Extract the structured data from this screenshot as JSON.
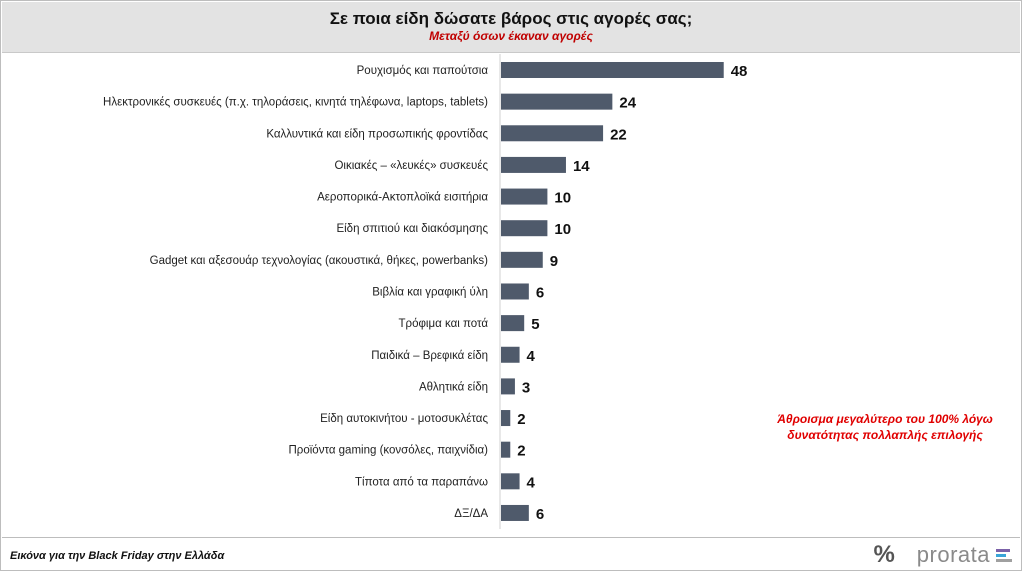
{
  "header": {
    "title": "Σε ποια είδη δώσατε βάρος στις αγορές σας;",
    "subtitle": "Μεταξύ όσων έκαναν αγορές"
  },
  "chart_data": {
    "type": "bar",
    "orientation": "horizontal",
    "title": "Σε ποια είδη δώσατε βάρος στις αγορές σας;",
    "subtitle": "Μεταξύ όσων έκαναν αγορές",
    "categories": [
      "Ρουχισμός και παπούτσια",
      "Ηλεκτρονικές συσκευές (π.χ. τηλοράσεις, κινητά τηλέφωνα, laptops, tablets)",
      "Καλλυντικά και είδη προσωπικής φροντίδας",
      "Οικιακές – «λευκές» συσκευές",
      "Αεροπορικά-Ακτοπλοϊκά εισιτήρια",
      "Είδη σπιτιού και διακόσμησης",
      "Gadget και αξεσουάρ τεχνολογίας (ακουστικά, θήκες, powerbanks)",
      "Βιβλία και γραφική ύλη",
      "Τρόφιμα και ποτά",
      "Παιδικά – Βρεφικά είδη",
      "Αθλητικά είδη",
      "Είδη αυτοκινήτου - μοτοσυκλέτας",
      "Προϊόντα gaming (κονσόλες, παιχνίδια)",
      "Τίποτα από τα παραπάνω",
      "ΔΞ/ΔΑ"
    ],
    "values": [
      48,
      24,
      22,
      14,
      10,
      10,
      9,
      6,
      5,
      4,
      3,
      2,
      2,
      4,
      6
    ],
    "xlim": [
      0,
      50
    ],
    "bar_color": "#4f5a6b",
    "grid": false,
    "legend": "none"
  },
  "note": {
    "line1": "Άθροισμα μεγαλύτερο του 100% λόγω",
    "line2": "δυνατότητας πολλαπλής επιλογής"
  },
  "footer": {
    "caption": "Εικόνα για την Black Friday στην Ελλάδα",
    "brand_mark": "%",
    "brand_name": "prorata",
    "brand_colors": [
      "#7b61a8",
      "#3aa5d8",
      "#a0a0a0"
    ]
  }
}
